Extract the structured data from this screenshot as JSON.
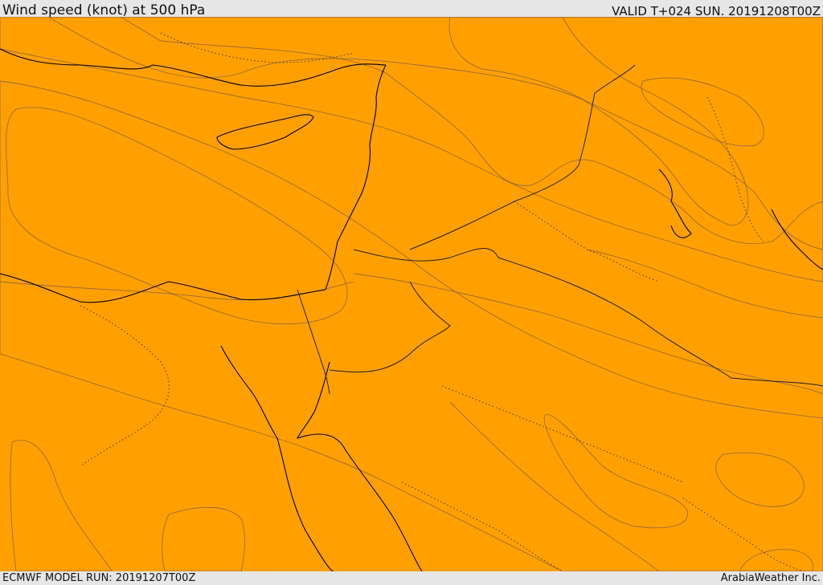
{
  "header": {
    "title": "Wind speed (knot) at 500 hPa",
    "valid": "VALID T+024 SUN. 20191208T00Z"
  },
  "footer": {
    "model_run": "ECMWF MODEL RUN: 20191207T00Z",
    "credit": "ArabiaWeather Inc."
  },
  "colors": {
    "band_0": "#fde0b4",
    "band_1": "#ffff00",
    "band_2": "#ffe000",
    "band_3": "#ffc000",
    "band_4": "#ffa000",
    "band_5": "#ff8000",
    "band_6": "#ff6000"
  }
}
